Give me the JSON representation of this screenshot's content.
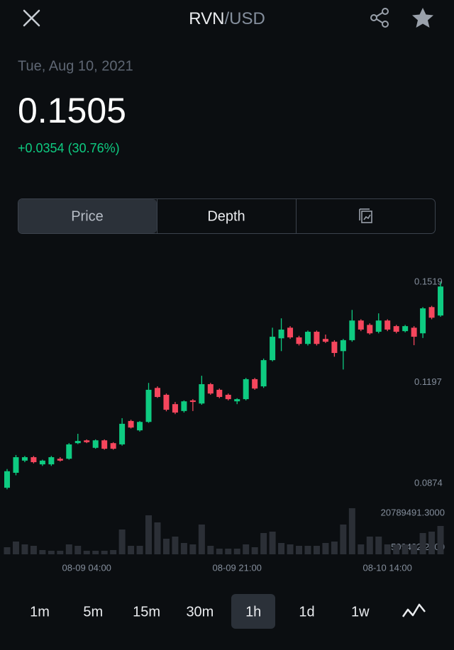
{
  "header": {
    "pair": [
      "RVN",
      "/USD"
    ]
  },
  "date": "Tue, Aug 10, 2021",
  "price": "0.1505",
  "change": "+0.0354 (30.76%)",
  "tabs": [
    "Price",
    "Depth"
  ],
  "intervals": [
    "1m",
    "5m",
    "15m",
    "30m",
    "1h",
    "1d",
    "1w"
  ],
  "chart_data": {
    "type": "candlestick",
    "up_color": "#0ecb81",
    "down_color": "#f6465d",
    "volume_color": "#2b2f36",
    "categories": [
      null,
      null,
      null,
      null,
      null,
      null,
      null,
      null,
      null,
      "08-09 04:00",
      null,
      null,
      null,
      null,
      null,
      null,
      null,
      null,
      null,
      null,
      null,
      null,
      null,
      null,
      null,
      null,
      "08-09 21:00",
      null,
      null,
      null,
      null,
      null,
      null,
      null,
      null,
      null,
      null,
      null,
      null,
      null,
      null,
      null,
      null,
      "08-10 14:00",
      null,
      null,
      null,
      null,
      null,
      null
    ],
    "open": [
      0.086,
      0.0908,
      0.0947,
      0.0958,
      0.0935,
      0.0935,
      0.0953,
      0.0953,
      0.1003,
      0.1012,
      0.0988,
      0.1012,
      0.1003,
      0.0999,
      0.1074,
      0.1044,
      0.1071,
      0.118,
      0.1158,
      0.1128,
      0.1106,
      0.114,
      0.113,
      0.1192,
      0.1174,
      0.1158,
      0.1137,
      0.1144,
      0.1208,
      0.1185,
      0.1269,
      0.1339,
      0.1373,
      0.1342,
      0.1321,
      0.136,
      0.1337,
      0.1328,
      0.1298,
      0.1333,
      0.1396,
      0.1382,
      0.136,
      0.1396,
      0.1378,
      0.1362,
      0.1373,
      0.1355,
      0.1439,
      0.1412
    ],
    "high": [
      0.092,
      0.0965,
      0.0962,
      0.0962,
      0.095,
      0.0962,
      0.0958,
      0.1003,
      0.1033,
      0.1015,
      0.1015,
      0.1015,
      0.1006,
      0.1083,
      0.1078,
      0.1074,
      0.1196,
      0.1185,
      0.1162,
      0.1135,
      0.114,
      0.1144,
      0.1219,
      0.1196,
      0.1178,
      0.1162,
      0.1147,
      0.1212,
      0.1212,
      0.1274,
      0.1373,
      0.1403,
      0.1378,
      0.1347,
      0.1364,
      0.1364,
      0.1351,
      0.1333,
      0.1337,
      0.143,
      0.14,
      0.1387,
      0.1419,
      0.14,
      0.1382,
      0.1382,
      0.1378,
      0.1439,
      0.1443,
      0.1519
    ],
    "low": [
      0.0855,
      0.09,
      0.0942,
      0.0938,
      0.093,
      0.093,
      0.0944,
      0.095,
      0.1,
      0.1003,
      0.0985,
      0.0982,
      0.0982,
      0.0995,
      0.105,
      0.104,
      0.1068,
      0.1148,
      0.1105,
      0.1096,
      0.1101,
      0.1106,
      0.1126,
      0.1158,
      0.1147,
      0.114,
      0.1128,
      0.114,
      0.1174,
      0.118,
      0.1265,
      0.1298,
      0.1337,
      0.1316,
      0.1316,
      0.1316,
      0.1324,
      0.128,
      0.1239,
      0.1328,
      0.1362,
      0.1351,
      0.1355,
      0.1362,
      0.1355,
      0.1358,
      0.1317,
      0.134,
      0.14,
      0.1408
    ],
    "close": [
      0.0913,
      0.0958,
      0.0958,
      0.0942,
      0.0947,
      0.0958,
      0.0947,
      0.0999,
      0.101,
      0.1006,
      0.1012,
      0.0985,
      0.0985,
      0.1065,
      0.1053,
      0.1071,
      0.1174,
      0.1151,
      0.111,
      0.1101,
      0.1137,
      0.1135,
      0.1192,
      0.1162,
      0.1151,
      0.1144,
      0.1144,
      0.1208,
      0.1178,
      0.1269,
      0.1344,
      0.1367,
      0.1342,
      0.1321,
      0.136,
      0.1321,
      0.1328,
      0.1292,
      0.1333,
      0.1396,
      0.1367,
      0.1355,
      0.1396,
      0.1367,
      0.136,
      0.1378,
      0.1344,
      0.1435,
      0.1405,
      0.1505
    ],
    "volume": [
      3200000,
      5760000,
      4480000,
      3840000,
      1920000,
      1600000,
      1600000,
      4480000,
      3840000,
      1600000,
      1600000,
      1600000,
      1920000,
      11200000,
      3840000,
      3840000,
      17600000,
      14400000,
      7040000,
      8000000,
      5120000,
      4480000,
      13440000,
      3840000,
      2560000,
      2560000,
      2560000,
      4480000,
      3200000,
      9600000,
      10240000,
      5120000,
      4480000,
      3840000,
      3840000,
      3840000,
      5120000,
      5760000,
      13440000,
      20789491.3,
      4480000,
      8000000,
      8000000,
      4480000,
      4480000,
      4480000,
      4480000,
      9600000,
      10240000,
      12800000
    ],
    "ylim": [
      0.0833,
      0.156
    ],
    "yticks": [
      0.0874,
      0.1197,
      0.1519
    ],
    "volume_ylim": [
      0,
      20789491.3
    ],
    "volume_yticks": [
      {
        "value": 509422.2,
        "label": "509422.2000"
      },
      {
        "value": 20789491.3,
        "label": "20789491.3000"
      }
    ]
  }
}
